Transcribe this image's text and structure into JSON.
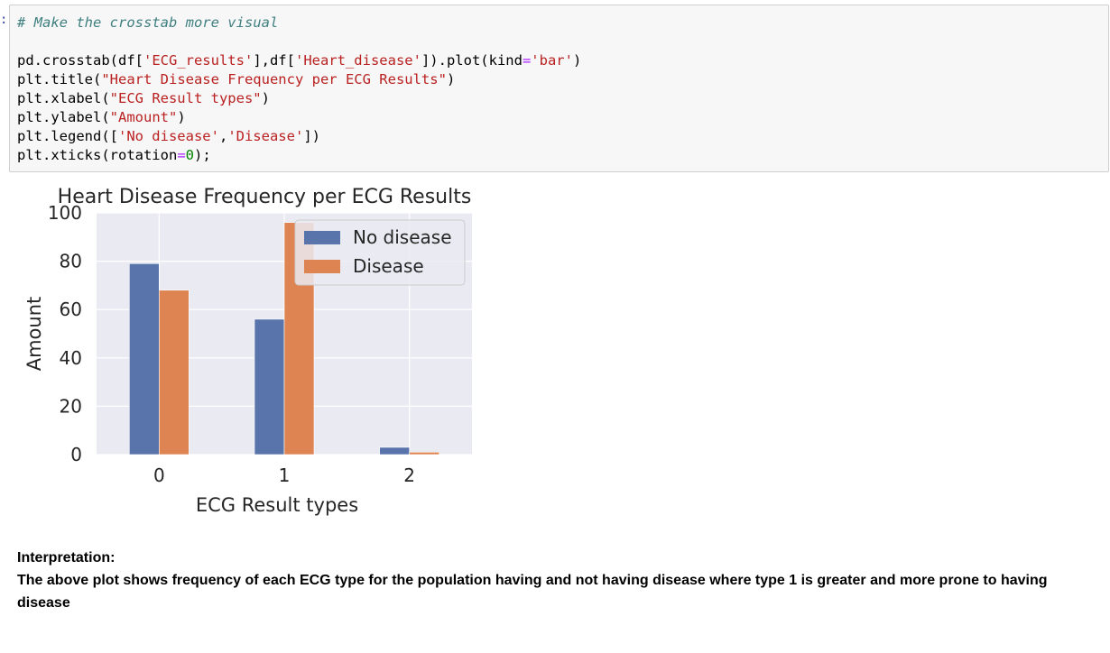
{
  "prompt": ":",
  "code": {
    "comment": "# Make the crosstab more visual",
    "lines": [
      [
        {
          "t": "pd.crosstab(df[",
          "c": ""
        },
        {
          "t": "'ECG_results'",
          "c": "str"
        },
        {
          "t": "],df[",
          "c": ""
        },
        {
          "t": "'Heart_disease'",
          "c": "str"
        },
        {
          "t": "]).plot(kind",
          "c": ""
        },
        {
          "t": "=",
          "c": "op"
        },
        {
          "t": "'bar'",
          "c": "str"
        },
        {
          "t": ")",
          "c": ""
        }
      ],
      [
        {
          "t": "plt.title(",
          "c": ""
        },
        {
          "t": "\"Heart Disease Frequency per ECG Results\"",
          "c": "str"
        },
        {
          "t": ")",
          "c": ""
        }
      ],
      [
        {
          "t": "plt.xlabel(",
          "c": ""
        },
        {
          "t": "\"ECG Result types\"",
          "c": "str"
        },
        {
          "t": ")",
          "c": ""
        }
      ],
      [
        {
          "t": "plt.ylabel(",
          "c": ""
        },
        {
          "t": "\"Amount\"",
          "c": "str"
        },
        {
          "t": ")",
          "c": ""
        }
      ],
      [
        {
          "t": "plt.legend([",
          "c": ""
        },
        {
          "t": "'No disease'",
          "c": "str"
        },
        {
          "t": ",",
          "c": ""
        },
        {
          "t": "'Disease'",
          "c": "str"
        },
        {
          "t": "])",
          "c": ""
        }
      ],
      [
        {
          "t": "plt.xticks(rotation",
          "c": ""
        },
        {
          "t": "=",
          "c": "op"
        },
        {
          "t": "0",
          "c": "num"
        },
        {
          "t": ");",
          "c": ""
        }
      ]
    ]
  },
  "chart_data": {
    "type": "bar",
    "title": "Heart Disease Frequency per ECG Results",
    "xlabel": "ECG Result types",
    "ylabel": "Amount",
    "categories": [
      "0",
      "1",
      "2"
    ],
    "series": [
      {
        "name": "No disease",
        "values": [
          79,
          56,
          3
        ],
        "color": "#5874aa"
      },
      {
        "name": "Disease",
        "values": [
          68,
          96,
          1
        ],
        "color": "#dd8452"
      }
    ],
    "ylim": [
      0,
      100
    ],
    "yticks": [
      0,
      20,
      40,
      60,
      80,
      100
    ],
    "grid": true,
    "legend_position": "top-right",
    "background": "#eaeaf2"
  },
  "interpretation": {
    "heading": "Interpretation:",
    "body": "The above plot shows frequency of each ECG type for the population having and not having disease where type 1 is greater and more prone to having disease"
  }
}
